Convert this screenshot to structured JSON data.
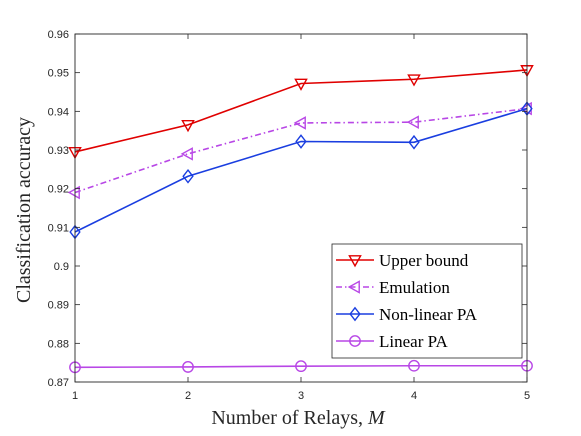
{
  "chart_data": {
    "type": "line",
    "title": "",
    "xlabel": "Number of Relays, ",
    "xlabel_var": "M",
    "ylabel": "Classification accuracy",
    "x": [
      1,
      2,
      3,
      4,
      5
    ],
    "xlim": [
      1,
      5
    ],
    "ylim": [
      0.87,
      0.96
    ],
    "xticks": [
      "1",
      "2",
      "3",
      "4",
      "5"
    ],
    "yticks": [
      "0.87",
      "0.88",
      "0.89",
      "0.9",
      "0.91",
      "0.92",
      "0.93",
      "0.94",
      "0.95",
      "0.96"
    ],
    "grid": false,
    "legend_position": "bottom-right",
    "series": [
      {
        "name": "Upper bound",
        "values": [
          0.9295,
          0.9365,
          0.9472,
          0.9483,
          0.9507
        ],
        "color": "#e00000",
        "marker": "triangle-down",
        "line": "solid"
      },
      {
        "name": "Emulation",
        "values": [
          0.919,
          0.929,
          0.937,
          0.9372,
          0.9407
        ],
        "color": "#b847e6",
        "marker": "triangle-left",
        "line": "dash-dot"
      },
      {
        "name": "Non-linear PA",
        "values": [
          0.9088,
          0.9232,
          0.9322,
          0.932,
          0.9407
        ],
        "color": "#1a3ee0",
        "marker": "diamond",
        "line": "solid"
      },
      {
        "name": "Linear PA",
        "values": [
          0.8738,
          0.8739,
          0.8741,
          0.8742,
          0.8742
        ],
        "color": "#b847e6",
        "marker": "circle",
        "line": "solid"
      }
    ]
  }
}
